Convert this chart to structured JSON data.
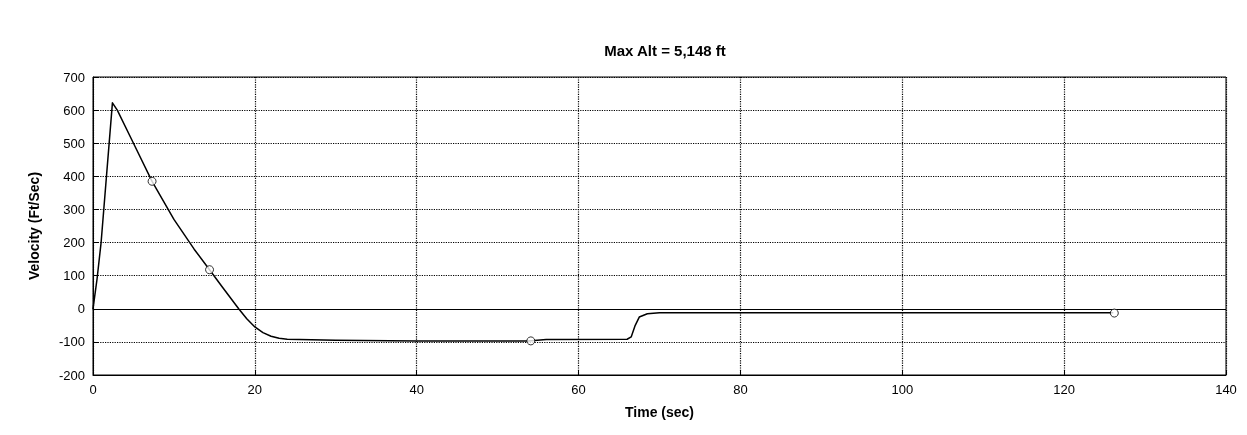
{
  "chart_data": {
    "type": "line",
    "title": "Max Alt = 5,148 ft",
    "xlabel": "Time (sec)",
    "ylabel": "Velocity (Ft/Sec)",
    "xlim": [
      0,
      140
    ],
    "xticks": [
      0,
      20,
      40,
      60,
      80,
      100,
      120,
      140
    ],
    "ylim": [
      -200,
      700
    ],
    "yticks": [
      -200,
      -100,
      0,
      100,
      200,
      300,
      400,
      500,
      600,
      700
    ],
    "grid": true,
    "line_style": "solid",
    "ref_lines": [
      {
        "axis": "y",
        "value": 0,
        "color": "#000000",
        "line_style": "solid"
      }
    ],
    "series": [
      {
        "color": "#000000",
        "marker": "none",
        "x": [
          0,
          0.5,
          1,
          2.4,
          3,
          5,
          7.3,
          10,
          12.5,
          14.4,
          16,
          18,
          19,
          20,
          21,
          22,
          23,
          24,
          30,
          40,
          53.8,
          56,
          66,
          66.5,
          67,
          67.5,
          68.5,
          70,
          100,
          126
        ],
        "values": [
          0,
          90,
          200,
          622,
          600,
          500,
          385,
          270,
          180,
          118,
          65,
          0,
          -30,
          -55,
          -72,
          -83,
          -89,
          -92,
          -95,
          -97,
          -97,
          -93,
          -92,
          -85,
          -50,
          -25,
          -15,
          -12,
          -12,
          -12
        ]
      },
      {
        "type": "scatter",
        "color": "#000000",
        "marker": "circle",
        "x": [
          7.3,
          14.4,
          54.1,
          126.2
        ],
        "values": [
          385,
          118,
          -97,
          -13
        ]
      }
    ]
  }
}
